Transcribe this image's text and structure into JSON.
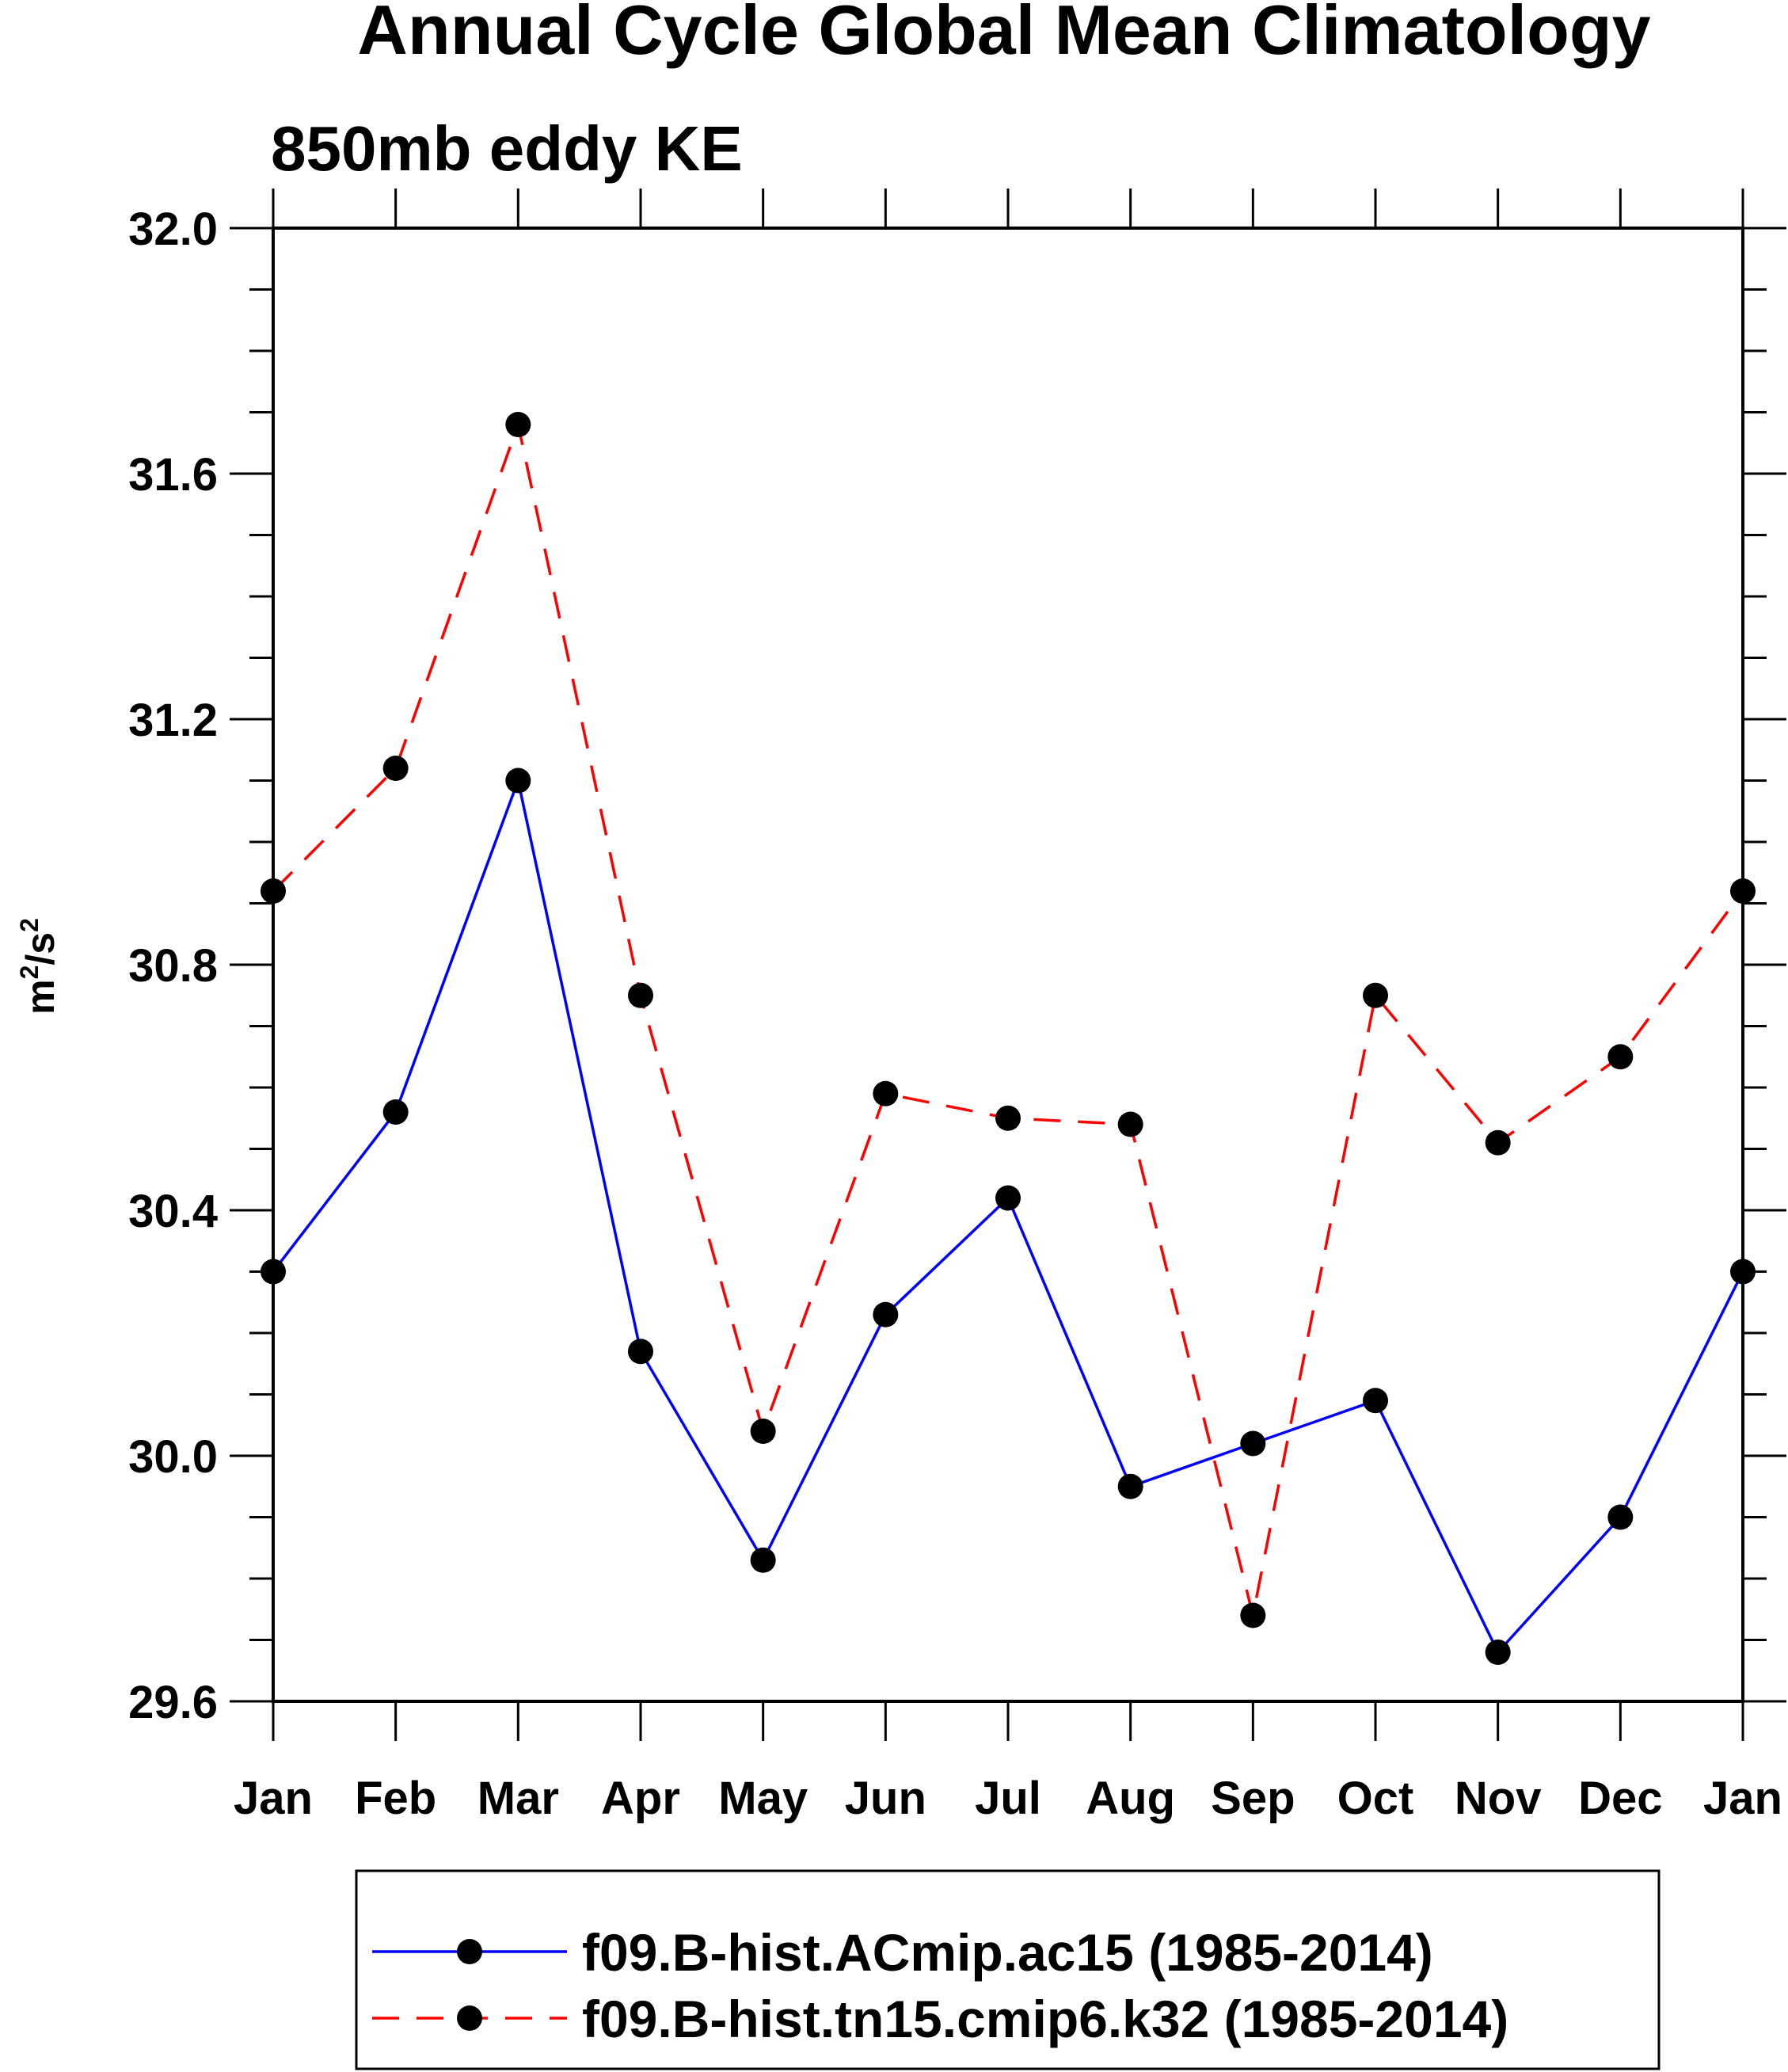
{
  "chart_data": {
    "type": "line",
    "title": "Annual Cycle Global Mean Climatology",
    "subtitle": "850mb eddy KE",
    "ylabel": "m²/s²",
    "ylabel_base": "m",
    "ylabel_sup1": "2",
    "ylabel_mid": "/s",
    "ylabel_sup2": "2",
    "xlabel": "",
    "ylim": [
      29.6,
      32.0
    ],
    "y_ticks": [
      "29.6",
      "30.0",
      "30.4",
      "30.8",
      "31.2",
      "31.6",
      "32.0"
    ],
    "y_tick_values": [
      29.6,
      30.0,
      30.4,
      30.8,
      31.2,
      31.6,
      32.0
    ],
    "y_minor_step": 0.1,
    "categories": [
      "Jan",
      "Feb",
      "Mar",
      "Apr",
      "May",
      "Jun",
      "Jul",
      "Aug",
      "Sep",
      "Oct",
      "Nov",
      "Dec",
      "Jan"
    ],
    "grid": false,
    "legend_position": "bottom",
    "series": [
      {
        "name": "f09.B-hist.ACmip.ac15 (1985-2014)",
        "color": "#0000ff",
        "dash": "solid",
        "marker": "filled-circle",
        "values": [
          30.3,
          30.56,
          31.1,
          30.17,
          29.83,
          30.23,
          30.42,
          29.95,
          30.02,
          30.09,
          29.68,
          29.9,
          30.3
        ]
      },
      {
        "name": "f09.B-hist.tn15.cmip6.k32 (1985-2014)",
        "color": "#ff0000",
        "dash": "dashed",
        "marker": "filled-circle",
        "values": [
          30.92,
          31.12,
          31.68,
          30.75,
          30.04,
          30.59,
          30.55,
          30.54,
          29.74,
          30.75,
          30.51,
          30.65,
          30.92
        ]
      }
    ]
  }
}
